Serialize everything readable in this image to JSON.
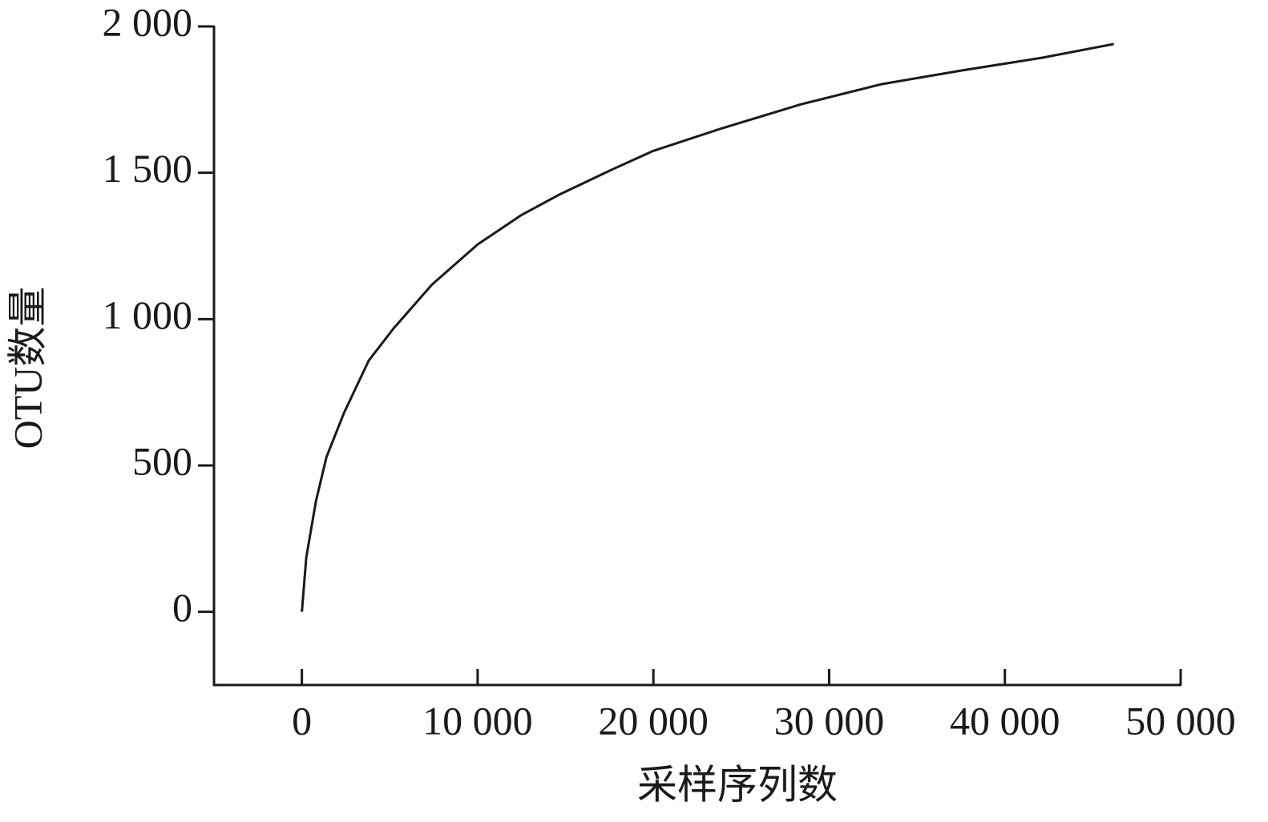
{
  "chart_data": {
    "type": "line",
    "x_label": "采样序列数",
    "y_label": "OTU数量",
    "x": [
      0,
      250,
      800,
      1400,
      2400,
      3800,
      5200,
      7400,
      10000,
      12500,
      14700,
      17500,
      20000,
      23900,
      28400,
      33000,
      37500,
      42100,
      46200
    ],
    "series": [
      {
        "color": "#1a1a1a",
        "values": [
          0,
          186,
          378,
          529,
          680,
          858,
          967,
          1118,
          1255,
          1356,
          1427,
          1507,
          1575,
          1652,
          1734,
          1803,
          1849,
          1893,
          1940
        ]
      }
    ],
    "xlim": [
      -5000,
      50000
    ],
    "xticks": [
      0,
      {
        "value": 10000,
        "label": "10 000"
      },
      {
        "value": 20000,
        "label": "20 000"
      },
      {
        "value": 30000,
        "label": "30 000"
      },
      {
        "value": 40000,
        "label": "40 000"
      },
      {
        "value": 50000,
        "label": "50 000"
      }
    ],
    "ylim": [
      -250,
      2000
    ],
    "yticks": [
      0,
      500,
      {
        "value": 1000,
        "label": "1 000"
      },
      {
        "value": 1500,
        "label": "1 500"
      },
      {
        "value": 2000,
        "label": "2 000"
      }
    ],
    "grid": false
  }
}
